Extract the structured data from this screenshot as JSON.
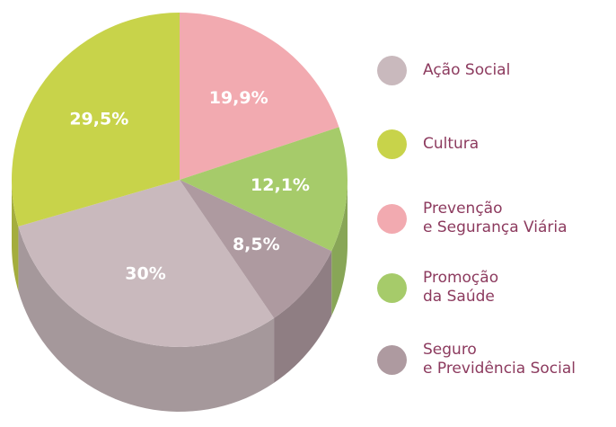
{
  "chart_data": {
    "type": "pie",
    "categories": [
      "Ação Social",
      "Cultura",
      "Prevenção\ne Segurança Viária",
      "Promoção\nda Saúde",
      "Seguro\ne Previdência Social"
    ],
    "values": [
      30,
      29.5,
      19.9,
      12.1,
      8.5
    ],
    "value_labels": [
      "30%",
      "29,5%",
      "19,9%",
      "12,1%",
      "8,5%"
    ],
    "colors": [
      "#c9b9bd",
      "#c8d34a",
      "#f2aab0",
      "#a6cb6a",
      "#ae9aa0"
    ],
    "legend": "right"
  }
}
